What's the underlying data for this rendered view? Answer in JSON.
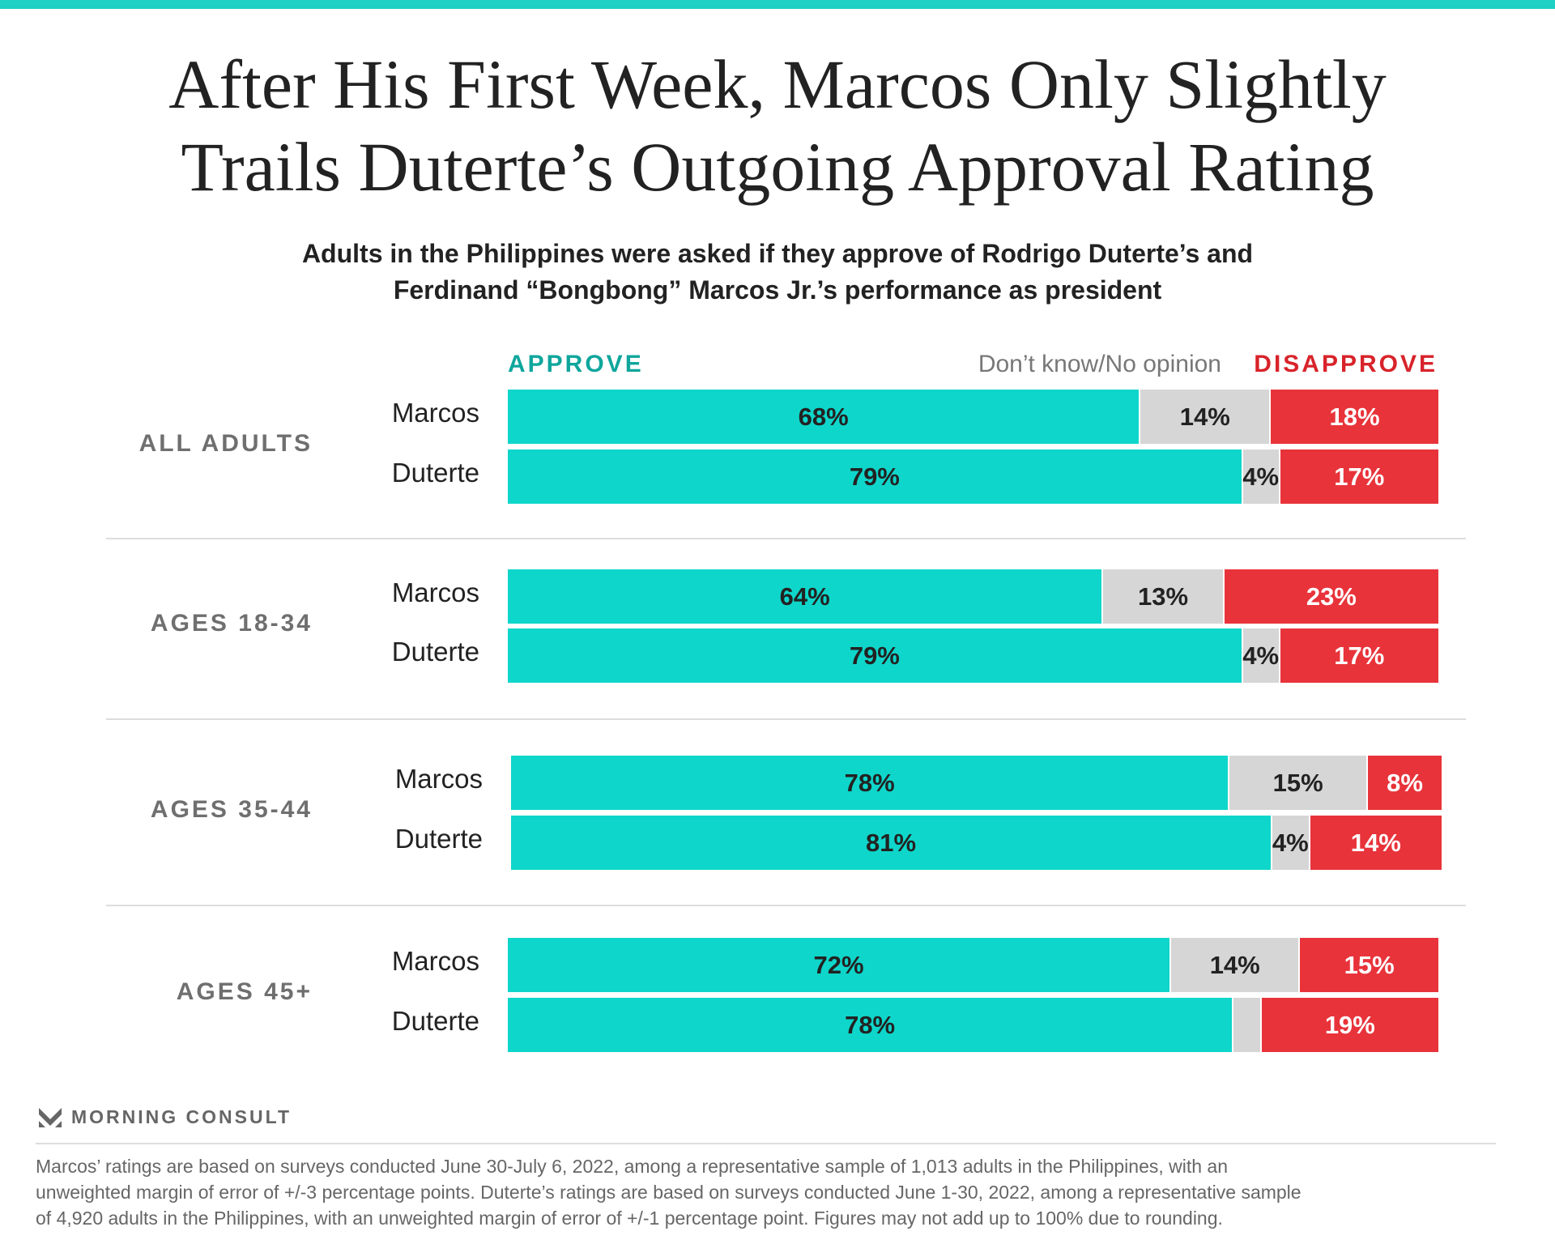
{
  "title_lines": [
    "After His First Week, Marcos Only Slightly",
    "Trails Duterte’s Outgoing Approval Rating"
  ],
  "subtitle_lines": [
    "Adults in the Philippines were asked if they approve of Rodrigo Duterte’s and",
    "Ferdinand “Bongbong” Marcos Jr.’s performance as president"
  ],
  "colors": {
    "approve": "#0fd6ca",
    "no_opinion": "#d6d6d6",
    "disapprove": "#e8333a",
    "approve_text": "#0ea69c",
    "disapprove_text": "#d8232a",
    "accent": "#1fd0c4"
  },
  "chart_data": {
    "type": "bar",
    "stacked": true,
    "orientation": "horizontal",
    "legend": [
      "APPROVE",
      "Don’t know/No opinion",
      "DISAPPROVE"
    ],
    "groups": [
      {
        "label": "ALL ADULTS",
        "rows": [
          {
            "name": "Marcos",
            "values": [
              68,
              14,
              18
            ],
            "labels": [
              "68%",
              "14%",
              "18%"
            ]
          },
          {
            "name": "Duterte",
            "values": [
              79,
              4,
              17
            ],
            "labels": [
              "79%",
              "4%",
              "17%"
            ]
          }
        ]
      },
      {
        "label": "AGES 18-34",
        "rows": [
          {
            "name": "Marcos",
            "values": [
              64,
              13,
              23
            ],
            "labels": [
              "64%",
              "13%",
              "23%"
            ]
          },
          {
            "name": "Duterte",
            "values": [
              79,
              4,
              17
            ],
            "labels": [
              "79%",
              "4%",
              "17%"
            ]
          }
        ]
      },
      {
        "label": "AGES 35-44",
        "rows": [
          {
            "name": "Marcos",
            "values": [
              78,
              15,
              8
            ],
            "labels": [
              "78%",
              "15%",
              "8%"
            ]
          },
          {
            "name": "Duterte",
            "values": [
              81,
              4,
              14
            ],
            "labels": [
              "81%",
              "4%",
              "14%"
            ]
          }
        ]
      },
      {
        "label": "AGES 45+",
        "rows": [
          {
            "name": "Marcos",
            "values": [
              72,
              14,
              15
            ],
            "labels": [
              "72%",
              "14%",
              "15%"
            ]
          },
          {
            "name": "Duterte",
            "values": [
              78,
              3,
              19
            ],
            "labels": [
              "78%",
              "",
              "19%"
            ]
          }
        ]
      }
    ]
  },
  "logo": "MORNING CONSULT",
  "footnote_lines": [
    "Marcos’ ratings are based on surveys conducted June 30-July 6, 2022, among a representative sample of 1,013 adults in the Philippines, with an",
    "unweighted margin of error of +/-3 percentage points. Duterte’s ratings are based on surveys conducted June 1-30, 2022, among a representative sample",
    "of 4,920 adults in the Philippines, with an unweighted margin of error of +/-1 percentage point. Figures may not add up to 100% due to rounding."
  ]
}
